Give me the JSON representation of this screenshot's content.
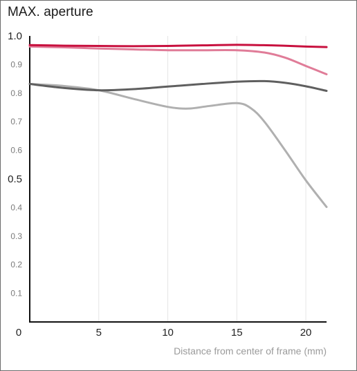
{
  "chart_data": {
    "type": "line",
    "title": "MAX. aperture",
    "xlabel": "Distance from center of frame (mm)",
    "ylabel": "",
    "xlim": [
      0,
      21.5
    ],
    "ylim": [
      0,
      1.0
    ],
    "x_ticks": [
      {
        "value": 0,
        "label": "0"
      },
      {
        "value": 5,
        "label": "5"
      },
      {
        "value": 10,
        "label": "10"
      },
      {
        "value": 15,
        "label": "15"
      },
      {
        "value": 20,
        "label": "20"
      }
    ],
    "y_ticks": [
      {
        "value": 0.1,
        "label": "0.1",
        "major": false
      },
      {
        "value": 0.2,
        "label": "0.2",
        "major": false
      },
      {
        "value": 0.3,
        "label": "0.3",
        "major": false
      },
      {
        "value": 0.4,
        "label": "0.4",
        "major": false
      },
      {
        "value": 0.5,
        "label": "0.5",
        "major": true
      },
      {
        "value": 0.6,
        "label": "0.6",
        "major": false
      },
      {
        "value": 0.7,
        "label": "0.7",
        "major": false
      },
      {
        "value": 0.8,
        "label": "0.8",
        "major": false
      },
      {
        "value": 0.9,
        "label": "0.9",
        "major": false
      },
      {
        "value": 1.0,
        "label": "1.0",
        "major": true
      }
    ],
    "grid": {
      "vertical": true,
      "horizontal": false
    },
    "series": [
      {
        "color": "#c8103e",
        "width": 3,
        "x": [
          0,
          2.5,
          5,
          7.5,
          10,
          12.5,
          15,
          17.5,
          20,
          21.5
        ],
        "y": [
          0.968,
          0.966,
          0.965,
          0.964,
          0.965,
          0.967,
          0.969,
          0.967,
          0.963,
          0.961
        ]
      },
      {
        "color": "#e07c98",
        "width": 3,
        "x": [
          0,
          2.5,
          5,
          7.5,
          10,
          12.5,
          15,
          17,
          18.5,
          20,
          21.5
        ],
        "y": [
          0.963,
          0.96,
          0.956,
          0.953,
          0.95,
          0.95,
          0.95,
          0.942,
          0.924,
          0.895,
          0.866
        ]
      },
      {
        "color": "#5f5f5f",
        "width": 3,
        "x": [
          0,
          2.5,
          5,
          7.5,
          10,
          12.5,
          15,
          17,
          18.5,
          20,
          21.5
        ],
        "y": [
          0.832,
          0.818,
          0.81,
          0.814,
          0.823,
          0.832,
          0.84,
          0.842,
          0.836,
          0.824,
          0.808
        ]
      },
      {
        "color": "#b0b0b0",
        "width": 3,
        "x": [
          0,
          2.5,
          5,
          7.5,
          10,
          11.5,
          13,
          15,
          16,
          17,
          18.5,
          20,
          21.5
        ],
        "y": [
          0.832,
          0.825,
          0.81,
          0.78,
          0.752,
          0.746,
          0.755,
          0.765,
          0.748,
          0.7,
          0.6,
          0.495,
          0.402
        ]
      }
    ]
  }
}
